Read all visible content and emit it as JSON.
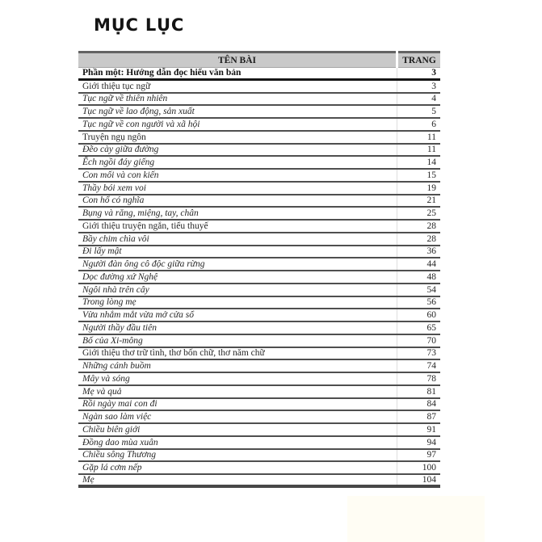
{
  "page": {
    "title": "MỤC LỤC"
  },
  "colors": {
    "header_bg": "#c9c9c9",
    "header_top_edge": "#636363",
    "row_line": "#4f4f4f",
    "text": "#262626"
  },
  "table": {
    "headers": {
      "name": "TÊN BÀI",
      "page": "TRANG"
    },
    "rows": [
      {
        "title": "Phần một: Hướng dẫn đọc hiểu văn bản",
        "page": "3",
        "style": "bold"
      },
      {
        "title": "Giới thiệu tục ngữ",
        "page": "3",
        "style": "regular"
      },
      {
        "title": "Tục ngữ về thiên nhiên",
        "page": "4",
        "style": "italic"
      },
      {
        "title": "Tục ngữ về lao động, sản xuất",
        "page": "5",
        "style": "italic"
      },
      {
        "title": "Tục ngữ về con người và xã hội",
        "page": "6",
        "style": "italic"
      },
      {
        "title": "Truyện ngụ ngôn",
        "page": "11",
        "style": "regular"
      },
      {
        "title": "Đẽo cày giữa đường",
        "page": "11",
        "style": "italic"
      },
      {
        "title": "Ếch ngồi đáy giếng",
        "page": "14",
        "style": "italic"
      },
      {
        "title": "Con mối và con kiến",
        "page": "15",
        "style": "italic"
      },
      {
        "title": "Thầy bói xem voi",
        "page": "19",
        "style": "italic"
      },
      {
        "title": "Con hổ có nghĩa",
        "page": "21",
        "style": "italic"
      },
      {
        "title": "Bụng và răng, miệng, tay, chân",
        "page": "25",
        "style": "italic"
      },
      {
        "title": "Giới thiệu truyện ngắn, tiểu thuyế",
        "page": "28",
        "style": "regular"
      },
      {
        "title": "Bầy chim chìa vôi",
        "page": "28",
        "style": "italic"
      },
      {
        "title": "Đi lấy mật",
        "page": "36",
        "style": "italic"
      },
      {
        "title": "Người đàn ông cô độc giữa rừng",
        "page": "44",
        "style": "italic"
      },
      {
        "title": "Dọc đường xứ Nghệ",
        "page": "48",
        "style": "italic"
      },
      {
        "title": "Ngôi nhà trên cây",
        "page": "54",
        "style": "italic"
      },
      {
        "title": "Trong lòng mẹ",
        "page": "56",
        "style": "italic"
      },
      {
        "title": "Vừa nhắm mắt vừa mở cửa sổ",
        "page": "60",
        "style": "italic"
      },
      {
        "title": "Người thầy đầu tiên",
        "page": "65",
        "style": "italic"
      },
      {
        "title": "Bố của Xi-mông",
        "page": "70",
        "style": "italic"
      },
      {
        "title": "Giới thiệu thơ trữ tình, thơ bốn chữ, thơ năm chữ",
        "page": "73",
        "style": "regular"
      },
      {
        "title": "Những cánh buồm",
        "page": "74",
        "style": "italic"
      },
      {
        "title": "Mây và sóng",
        "page": "78",
        "style": "italic"
      },
      {
        "title": "Mẹ và quả",
        "page": "81",
        "style": "italic"
      },
      {
        "title": "Rồi ngày mai con đi",
        "page": "84",
        "style": "italic"
      },
      {
        "title": "Ngàn sao làm việc",
        "page": "87",
        "style": "italic"
      },
      {
        "title": "Chiều biên giới",
        "page": "91",
        "style": "italic"
      },
      {
        "title": "Đồng dao mùa xuân",
        "page": "94",
        "style": "italic"
      },
      {
        "title": "Chiều sông Thương",
        "page": "97",
        "style": "italic"
      },
      {
        "title": "Gặp lá cơm nếp",
        "page": "100",
        "style": "italic"
      },
      {
        "title": "Mẹ",
        "page": "104",
        "style": "italic"
      }
    ]
  }
}
